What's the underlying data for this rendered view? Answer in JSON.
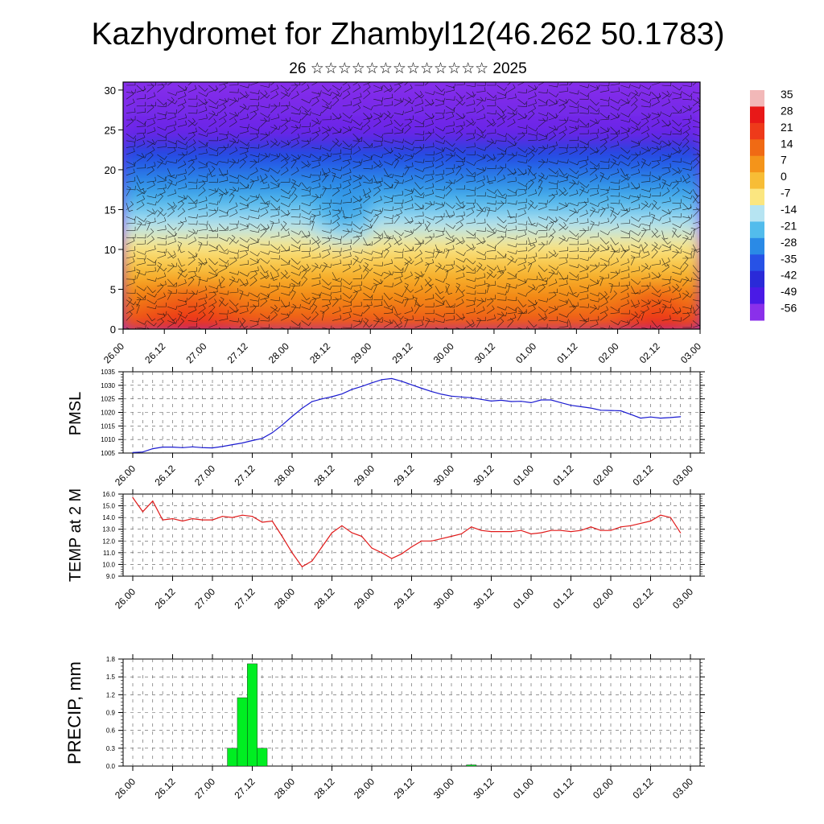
{
  "header": {
    "title": "Kazhydromet for Zhambyl12(46.262 50.1783)",
    "subtitle": "26 ☆☆☆☆☆☆☆☆☆☆☆☆☆ 2025"
  },
  "colors": {
    "pmsl_line": "#1a1ad0",
    "temp_line": "#e01a1a",
    "precip_bar": "#00ee22",
    "grid": "#666666"
  },
  "chart_data": [
    {
      "type": "heatmap",
      "name": "vertical-temperature-wind-section",
      "ylim": [
        0,
        31
      ],
      "yticks": [
        "0",
        "5",
        "10",
        "15",
        "20",
        "25",
        "30"
      ],
      "xtick_labels": [
        "26.00",
        "26.12",
        "27.00",
        "27.12",
        "28.00",
        "28.12",
        "29.00",
        "29.12",
        "30.00",
        "30.12",
        "01.00",
        "01.12",
        "02.00",
        "02.12",
        "03.00"
      ],
      "colorbar_labels": [
        "35",
        "28",
        "21",
        "14",
        "7",
        "0",
        "-7",
        "-14",
        "-21",
        "-28",
        "-35",
        "-42",
        "-49",
        "-56"
      ],
      "colorbar_colors": [
        "#f2b8b8",
        "#e81818",
        "#ee3a1a",
        "#f06a14",
        "#f4941a",
        "#f7bd36",
        "#fbe680",
        "#b6e4f2",
        "#52bcec",
        "#2a8ae6",
        "#2752e6",
        "#2a2ad8",
        "#4a1ae6",
        "#8a30ea"
      ]
    },
    {
      "type": "line",
      "name": "pmsl",
      "ylabel": "PMSL",
      "ylim": [
        1005,
        1035
      ],
      "yticks": [
        "1005",
        "1010",
        "1015",
        "1020",
        "1025",
        "1030",
        "1035"
      ],
      "xtick_labels": [
        "26.00",
        "26.12",
        "27.00",
        "27.12",
        "28.00",
        "28.12",
        "29.00",
        "29.12",
        "30.00",
        "30.12",
        "01.00",
        "01.12",
        "02.00",
        "02.12",
        "03.00"
      ],
      "x": [
        0,
        3,
        6,
        9,
        12,
        15,
        18,
        21,
        24,
        27,
        30,
        33,
        36,
        39,
        42,
        45,
        48,
        51,
        54,
        57,
        60,
        63,
        66,
        69,
        72,
        75,
        78,
        81,
        84,
        87,
        90,
        93,
        96,
        99,
        102,
        105,
        108,
        111,
        114,
        117,
        120,
        123,
        126,
        129,
        132,
        135,
        138,
        141,
        144,
        147,
        150,
        153,
        156,
        159,
        162,
        165
      ],
      "values": [
        1005.2,
        1005.4,
        1006.6,
        1007.2,
        1007.2,
        1007.0,
        1007.3,
        1007.0,
        1006.9,
        1007.4,
        1008.1,
        1008.7,
        1009.6,
        1010.4,
        1012.5,
        1015.3,
        1018.5,
        1021.5,
        1024.0,
        1025.0,
        1025.8,
        1026.8,
        1028.5,
        1029.6,
        1030.9,
        1032.1,
        1032.5,
        1031.5,
        1030.2,
        1028.9,
        1027.7,
        1026.7,
        1026.0,
        1025.7,
        1025.4,
        1024.8,
        1024.2,
        1024.5,
        1024.0,
        1024.1,
        1023.6,
        1024.6,
        1024.6,
        1023.6,
        1022.6,
        1022.1,
        1021.6,
        1020.8,
        1020.7,
        1020.6,
        1019.3,
        1017.9,
        1018.3,
        1017.9,
        1018.1,
        1018.4
      ]
    },
    {
      "type": "line",
      "name": "temp-2m",
      "ylabel": "TEMP at 2 M",
      "ylim": [
        9.0,
        16.0
      ],
      "yticks": [
        "9.0",
        "10.0",
        "11.0",
        "12.0",
        "13.0",
        "14.0",
        "15.0",
        "16.0"
      ],
      "xtick_labels": [
        "26.00",
        "26.12",
        "27.00",
        "27.12",
        "28.00",
        "28.12",
        "29.00",
        "29.12",
        "30.00",
        "30.12",
        "01.00",
        "01.12",
        "02.00",
        "02.12",
        "03.00"
      ],
      "x": [
        0,
        3,
        6,
        9,
        12,
        15,
        18,
        21,
        24,
        27,
        30,
        33,
        36,
        39,
        42,
        45,
        48,
        51,
        54,
        57,
        60,
        63,
        66,
        69,
        72,
        75,
        78,
        81,
        84,
        87,
        90,
        93,
        96,
        99,
        102,
        105,
        108,
        111,
        114,
        117,
        120,
        123,
        126,
        129,
        132,
        135,
        138,
        141,
        144,
        147,
        150,
        153,
        156,
        159,
        162,
        165
      ],
      "values": [
        15.7,
        14.5,
        15.4,
        13.8,
        13.9,
        13.7,
        13.9,
        13.8,
        13.8,
        14.1,
        14.0,
        14.2,
        14.1,
        13.6,
        13.7,
        12.4,
        11.0,
        9.8,
        10.3,
        11.5,
        12.7,
        13.3,
        12.7,
        12.4,
        11.4,
        11.0,
        10.5,
        10.9,
        11.5,
        12.0,
        12.0,
        12.2,
        12.4,
        12.6,
        13.2,
        12.9,
        12.8,
        12.8,
        12.8,
        12.9,
        12.6,
        12.7,
        12.9,
        12.9,
        12.8,
        12.9,
        13.2,
        12.9,
        12.9,
        13.2,
        13.3,
        13.5,
        13.7,
        14.2,
        14.0,
        12.7
      ]
    },
    {
      "type": "bar",
      "name": "precip",
      "ylabel": "PRECIP, mm",
      "ylim": [
        0,
        1.8
      ],
      "yticks": [
        "0.0",
        "0.3",
        "0.6",
        "0.9",
        "1.2",
        "1.5",
        "1.8"
      ],
      "xtick_labels": [
        "26.00",
        "26.12",
        "27.00",
        "27.12",
        "28.00",
        "28.12",
        "29.00",
        "29.12",
        "30.00",
        "30.12",
        "01.00",
        "01.12",
        "02.00",
        "02.12",
        "03.00"
      ],
      "bar_hours": [
        30,
        33,
        36,
        39,
        102
      ],
      "values": [
        0.3,
        1.15,
        1.72,
        0.3,
        0.02
      ]
    }
  ]
}
